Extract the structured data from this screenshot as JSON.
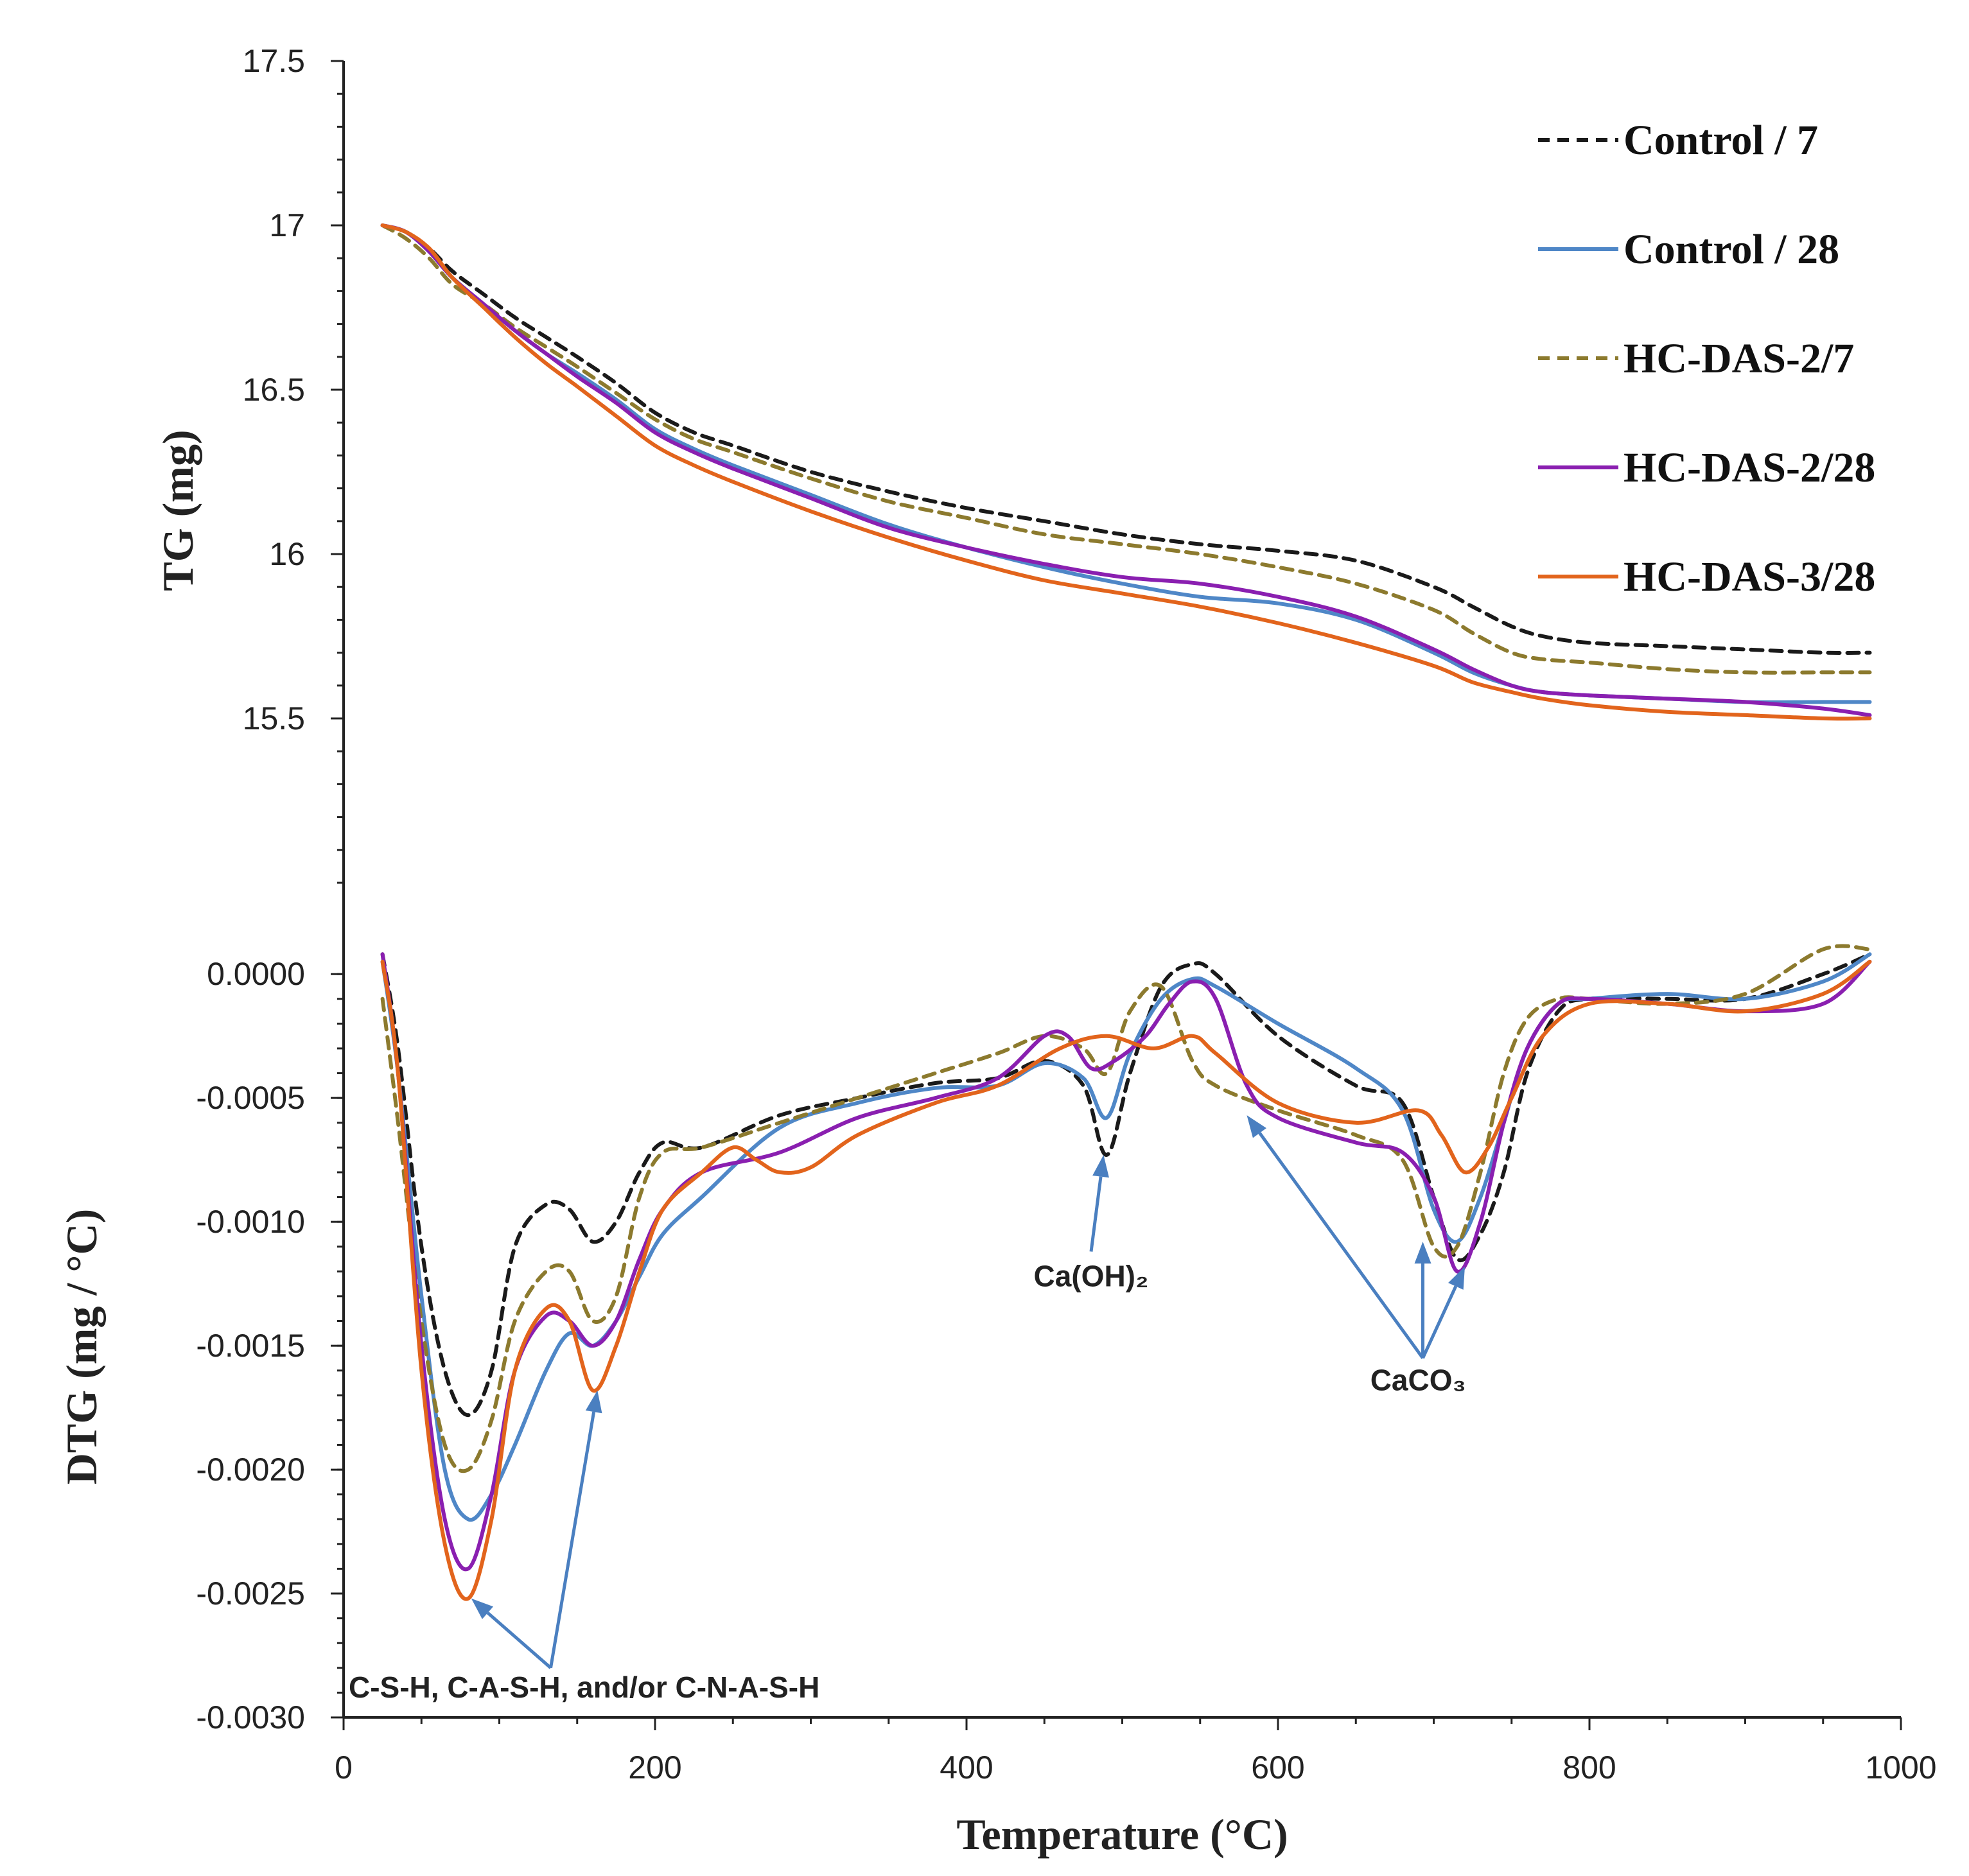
{
  "chart_data": {
    "type": "line",
    "x_axis": {
      "label": "Temperature (°C)",
      "range": [
        0,
        1000
      ],
      "ticks": [
        0,
        200,
        400,
        600,
        800,
        1000
      ],
      "tick_labels": [
        "0",
        "200",
        "400",
        "600",
        "800",
        "1000"
      ]
    },
    "legend": {
      "placement": "top-right",
      "entries": [
        {
          "name": "Control / 7",
          "color": "#1a1a1a",
          "dashed": true
        },
        {
          "name": "Control / 28",
          "color": "#4f87c7",
          "dashed": false
        },
        {
          "name": "HC-DAS-2/7",
          "color": "#8c7a2e",
          "dashed": true
        },
        {
          "name": "HC-DAS-2/28",
          "color": "#8a1fb0",
          "dashed": false
        },
        {
          "name": "HC-DAS-3/28",
          "color": "#e2641c",
          "dashed": false
        }
      ]
    },
    "panels": [
      {
        "id": "tg",
        "ylabel": "TG (mg)",
        "ylim": [
          15.0,
          17.5
        ],
        "y_ticks": [
          15.5,
          16,
          16.5,
          17,
          17.5
        ],
        "y_tick_labels": [
          "15.5",
          "16",
          "16.5",
          "17",
          "17.5"
        ],
        "series": [
          {
            "name": "Control / 7",
            "color": "#1a1a1a",
            "dashed": true,
            "x": [
              25,
              40,
              55,
              70,
              90,
              110,
              130,
              150,
              175,
              200,
              225,
              250,
              300,
              350,
              400,
              450,
              500,
              550,
              600,
              650,
              700,
              725,
              750,
              770,
              800,
              850,
              900,
              950,
              980
            ],
            "y": [
              17.0,
              16.98,
              16.93,
              16.86,
              16.79,
              16.72,
              16.66,
              16.6,
              16.52,
              16.43,
              16.37,
              16.33,
              16.25,
              16.19,
              16.14,
              16.1,
              16.06,
              16.03,
              16.01,
              15.98,
              15.9,
              15.84,
              15.78,
              15.75,
              15.73,
              15.72,
              15.71,
              15.7,
              15.7
            ]
          },
          {
            "name": "Control / 28",
            "color": "#4f87c7",
            "dashed": false,
            "x": [
              25,
              40,
              55,
              70,
              90,
              110,
              130,
              150,
              175,
              200,
              225,
              250,
              300,
              350,
              400,
              450,
              500,
              550,
              600,
              650,
              700,
              725,
              750,
              770,
              800,
              850,
              900,
              950,
              980
            ],
            "y": [
              17.0,
              16.98,
              16.92,
              16.84,
              16.76,
              16.68,
              16.61,
              16.55,
              16.47,
              16.38,
              16.32,
              16.27,
              16.18,
              16.09,
              16.02,
              15.96,
              15.91,
              15.87,
              15.85,
              15.8,
              15.7,
              15.64,
              15.6,
              15.58,
              15.57,
              15.56,
              15.55,
              15.55,
              15.55
            ]
          },
          {
            "name": "HC-DAS-2/7",
            "color": "#8c7a2e",
            "dashed": true,
            "x": [
              25,
              40,
              55,
              70,
              90,
              110,
              130,
              150,
              175,
              200,
              225,
              250,
              300,
              350,
              400,
              450,
              500,
              550,
              600,
              650,
              700,
              725,
              750,
              770,
              800,
              850,
              900,
              950,
              980
            ],
            "y": [
              17.0,
              16.96,
              16.9,
              16.82,
              16.76,
              16.69,
              16.63,
              16.57,
              16.49,
              16.41,
              16.35,
              16.31,
              16.23,
              16.16,
              16.11,
              16.06,
              16.03,
              16.0,
              15.96,
              15.91,
              15.83,
              15.76,
              15.7,
              15.68,
              15.67,
              15.65,
              15.64,
              15.64,
              15.64
            ]
          },
          {
            "name": "HC-DAS-2/28",
            "color": "#8a1fb0",
            "dashed": false,
            "x": [
              25,
              40,
              55,
              70,
              90,
              110,
              130,
              150,
              175,
              200,
              225,
              250,
              300,
              350,
              400,
              450,
              500,
              550,
              600,
              650,
              700,
              725,
              750,
              770,
              800,
              850,
              900,
              950,
              980
            ],
            "y": [
              17.0,
              16.98,
              16.92,
              16.84,
              16.76,
              16.68,
              16.61,
              16.54,
              16.46,
              16.37,
              16.31,
              16.26,
              16.17,
              16.08,
              16.02,
              15.97,
              15.93,
              15.91,
              15.87,
              15.81,
              15.71,
              15.65,
              15.6,
              15.58,
              15.57,
              15.56,
              15.55,
              15.53,
              15.51
            ]
          },
          {
            "name": "HC-DAS-3/28",
            "color": "#e2641c",
            "dashed": false,
            "x": [
              25,
              40,
              55,
              70,
              90,
              110,
              130,
              150,
              175,
              200,
              225,
              250,
              300,
              350,
              400,
              450,
              500,
              550,
              600,
              650,
              700,
              725,
              750,
              770,
              800,
              850,
              900,
              950,
              980
            ],
            "y": [
              17.0,
              16.98,
              16.93,
              16.84,
              16.75,
              16.66,
              16.58,
              16.51,
              16.42,
              16.33,
              16.27,
              16.22,
              16.13,
              16.05,
              15.98,
              15.92,
              15.88,
              15.84,
              15.79,
              15.73,
              15.66,
              15.61,
              15.58,
              15.56,
              15.54,
              15.52,
              15.51,
              15.5,
              15.5
            ]
          }
        ]
      },
      {
        "id": "dtg",
        "ylabel": "DTG (mg / °C)",
        "ylim": [
          -0.003,
          0.0002
        ],
        "y_ticks": [
          -0.003,
          -0.0025,
          -0.002,
          -0.0015,
          -0.001,
          -0.0005,
          0.0
        ],
        "y_tick_labels": [
          "-0.0030",
          "-0.0025",
          "-0.0020",
          "-0.0015",
          "-0.0010",
          "-0.0005",
          "0.0000"
        ],
        "series": [
          {
            "name": "Control / 7",
            "color": "#1a1a1a",
            "dashed": true,
            "x": [
              25,
              35,
              50,
              65,
              80,
              95,
              110,
              130,
              145,
              160,
              175,
              190,
              205,
              230,
              280,
              330,
              380,
              420,
              450,
              475,
              490,
              505,
              525,
              545,
              560,
              600,
              650,
              680,
              700,
              715,
              730,
              745,
              760,
              780,
              800,
              850,
              900,
              950,
              980
            ],
            "y": [
              8e-05,
              -0.0003,
              -0.0011,
              -0.0016,
              -0.00178,
              -0.0016,
              -0.0011,
              -0.00093,
              -0.00095,
              -0.00108,
              -0.001,
              -0.0008,
              -0.00068,
              -0.0007,
              -0.00057,
              -0.0005,
              -0.00044,
              -0.00042,
              -0.00035,
              -0.00045,
              -0.00073,
              -0.0004,
              -5e-05,
              4e-05,
              0.0,
              -0.00025,
              -0.00045,
              -0.00052,
              -0.0009,
              -0.00115,
              -0.00105,
              -0.0008,
              -0.0004,
              -0.00015,
              -0.0001,
              -0.0001,
              -0.0001,
              0.0,
              8e-05
            ]
          },
          {
            "name": "Control / 28",
            "color": "#4f87c7",
            "dashed": false,
            "x": [
              25,
              35,
              50,
              65,
              80,
              95,
              110,
              130,
              145,
              160,
              175,
              190,
              205,
              230,
              280,
              330,
              380,
              420,
              450,
              475,
              490,
              505,
              525,
              545,
              560,
              600,
              650,
              680,
              700,
              715,
              730,
              745,
              760,
              780,
              800,
              850,
              900,
              950,
              980
            ],
            "y": [
              5e-05,
              -0.0004,
              -0.0013,
              -0.002,
              -0.0022,
              -0.0021,
              -0.0019,
              -0.0016,
              -0.00145,
              -0.0015,
              -0.0014,
              -0.00122,
              -0.00105,
              -0.0009,
              -0.00062,
              -0.00052,
              -0.00046,
              -0.00045,
              -0.00036,
              -0.00042,
              -0.00058,
              -0.00032,
              -0.0001,
              -2e-05,
              -5e-05,
              -0.0002,
              -0.00038,
              -0.00055,
              -0.00095,
              -0.00108,
              -0.0009,
              -0.0006,
              -0.0003,
              -0.00012,
              -0.0001,
              -8e-05,
              -0.0001,
              -3e-05,
              8e-05
            ]
          },
          {
            "name": "HC-DAS-2/7",
            "color": "#8c7a2e",
            "dashed": true,
            "x": [
              25,
              35,
              50,
              65,
              80,
              95,
              110,
              130,
              145,
              160,
              175,
              190,
              205,
              230,
              280,
              330,
              380,
              420,
              450,
              475,
              490,
              505,
              525,
              545,
              560,
              600,
              650,
              680,
              700,
              715,
              730,
              745,
              760,
              780,
              800,
              850,
              900,
              950,
              980
            ],
            "y": [
              -0.0001,
              -0.0006,
              -0.0014,
              -0.0019,
              -0.002,
              -0.0018,
              -0.0014,
              -0.0012,
              -0.0012,
              -0.0014,
              -0.0013,
              -0.0009,
              -0.00072,
              -0.0007,
              -0.0006,
              -0.0005,
              -0.0004,
              -0.00032,
              -0.00025,
              -0.0003,
              -0.0004,
              -0.00015,
              -5e-05,
              -0.00035,
              -0.00045,
              -0.00055,
              -0.00065,
              -0.00075,
              -0.0011,
              -0.0011,
              -0.0008,
              -0.0004,
              -0.00018,
              -0.0001,
              -0.0001,
              -0.00012,
              -8e-05,
              0.0001,
              0.0001
            ]
          },
          {
            "name": "HC-DAS-2/28",
            "color": "#8a1fb0",
            "dashed": false,
            "x": [
              25,
              35,
              50,
              65,
              80,
              95,
              110,
              130,
              145,
              160,
              175,
              190,
              205,
              230,
              280,
              330,
              380,
              420,
              450,
              465,
              480,
              495,
              515,
              530,
              545,
              560,
              580,
              600,
              650,
              680,
              700,
              715,
              730,
              745,
              760,
              780,
              800,
              850,
              900,
              950,
              980
            ],
            "y": [
              8e-05,
              -0.0004,
              -0.0015,
              -0.0022,
              -0.0024,
              -0.0021,
              -0.0016,
              -0.00138,
              -0.0014,
              -0.0015,
              -0.0014,
              -0.00115,
              -0.00095,
              -0.0008,
              -0.00072,
              -0.00058,
              -0.0005,
              -0.00042,
              -0.00025,
              -0.00025,
              -0.00038,
              -0.00035,
              -0.00025,
              -0.00012,
              -3e-05,
              -0.0001,
              -0.00045,
              -0.00058,
              -0.00068,
              -0.00072,
              -0.0009,
              -0.0012,
              -0.001,
              -0.0006,
              -0.0003,
              -0.00012,
              -0.0001,
              -0.00012,
              -0.00015,
              -0.00012,
              5e-05
            ]
          },
          {
            "name": "HC-DAS-3/28",
            "color": "#e2641c",
            "dashed": false,
            "x": [
              25,
              35,
              50,
              65,
              80,
              95,
              110,
              130,
              145,
              160,
              175,
              190,
              205,
              230,
              250,
              265,
              280,
              300,
              330,
              380,
              420,
              460,
              490,
              520,
              545,
              560,
              600,
              650,
              690,
              705,
              720,
              735,
              750,
              770,
              800,
              850,
              900,
              950,
              980
            ],
            "y": [
              5e-05,
              -0.0004,
              -0.0016,
              -0.0023,
              -0.00252,
              -0.0022,
              -0.0016,
              -0.00135,
              -0.0014,
              -0.00168,
              -0.0015,
              -0.0012,
              -0.00095,
              -0.0008,
              -0.0007,
              -0.00075,
              -0.0008,
              -0.00078,
              -0.00065,
              -0.00052,
              -0.00045,
              -0.0003,
              -0.00025,
              -0.0003,
              -0.00025,
              -0.00032,
              -0.00052,
              -0.0006,
              -0.00055,
              -0.00065,
              -0.0008,
              -0.0007,
              -0.0005,
              -0.00025,
              -0.00012,
              -0.00012,
              -0.00015,
              -8e-05,
              5e-05
            ]
          }
        ],
        "annotations": [
          {
            "id": "csh",
            "text": "C-S-H, C-A-S-H, and/or C-N-A-S-H",
            "anchor": [
              0,
              -0.00292
            ],
            "tail": [
              133,
              -0.0028
            ],
            "targets": [
              [
                82,
                -0.00252
              ],
              [
                163,
                -0.00168
              ]
            ]
          },
          {
            "id": "caoh",
            "text": "Ca(OH)₂",
            "anchor": [
              480,
              -0.00126
            ],
            "tail": [
              480,
              -0.00112
            ],
            "targets": [
              [
                488,
                -0.00073
              ]
            ]
          },
          {
            "id": "caco3",
            "text": "CaCO₃",
            "anchor": [
              690,
              -0.00168
            ],
            "tail": [
              693,
              -0.00155
            ],
            "targets": [
              [
                580,
                -0.00057
              ],
              [
                693,
                -0.00108
              ],
              [
                720,
                -0.00118
              ]
            ]
          }
        ]
      }
    ]
  }
}
